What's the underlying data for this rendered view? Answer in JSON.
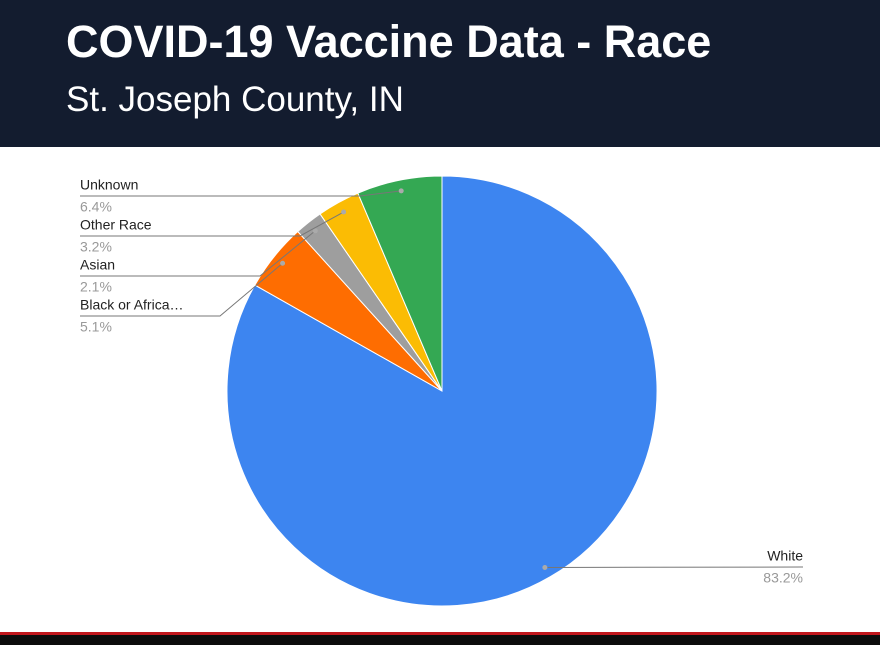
{
  "chart_data": {
    "type": "pie",
    "title": "COVID-19 Vaccine Data - Race",
    "subtitle": "St. Joseph County, IN",
    "categories": [
      "White",
      "Black or Africa…",
      "Asian",
      "Other Race",
      "Unknown"
    ],
    "values": [
      83.2,
      5.1,
      2.1,
      3.2,
      6.4
    ],
    "value_labels": [
      "83.2%",
      "5.1%",
      "2.1%",
      "3.2%",
      "6.4%"
    ],
    "colors": [
      "#3d85f0",
      "#fe6d01",
      "#9e9e9e",
      "#fbbc04",
      "#34a853"
    ]
  }
}
